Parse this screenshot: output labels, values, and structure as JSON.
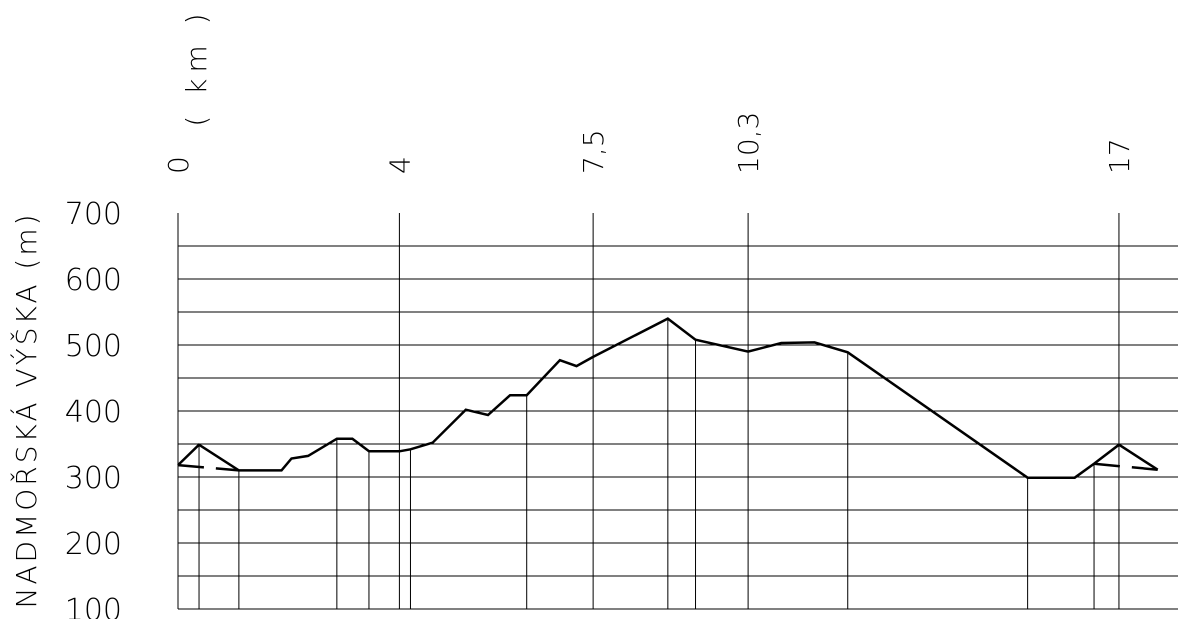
{
  "chart_data": {
    "type": "line",
    "title": "",
    "ylabel": "NADMOŘSKÁ VÝŠKA (m)",
    "xlabel": "( km )",
    "ylim": [
      100,
      700
    ],
    "yticks": [
      "100",
      "200",
      "300",
      "400",
      "500",
      "600",
      "700"
    ],
    "ytick_values": [
      100,
      200,
      300,
      400,
      500,
      600,
      700
    ],
    "xlim": [
      0,
      17.7
    ],
    "xticks": [
      {
        "label": "0",
        "value": 0
      },
      {
        "label": "4",
        "value": 4
      },
      {
        "label": "7,5",
        "value": 7.5
      },
      {
        "label": "10,3",
        "value": 10.3
      },
      {
        "label": "17",
        "value": 17
      }
    ],
    "grid": true,
    "series": [
      {
        "values": [
          {
            "x": 0.0,
            "y": 318
          },
          {
            "x": 0.38,
            "y": 349
          },
          {
            "x": 1.1,
            "y": 310
          },
          {
            "x": 1.87,
            "y": 310
          },
          {
            "x": 2.05,
            "y": 328
          },
          {
            "x": 2.35,
            "y": 332
          },
          {
            "x": 2.87,
            "y": 358
          },
          {
            "x": 3.15,
            "y": 358
          },
          {
            "x": 3.45,
            "y": 339
          },
          {
            "x": 4.0,
            "y": 339
          },
          {
            "x": 4.2,
            "y": 342
          },
          {
            "x": 4.6,
            "y": 352
          },
          {
            "x": 5.2,
            "y": 402
          },
          {
            "x": 5.6,
            "y": 394
          },
          {
            "x": 6.0,
            "y": 424
          },
          {
            "x": 6.3,
            "y": 424
          },
          {
            "x": 6.9,
            "y": 477
          },
          {
            "x": 7.2,
            "y": 468
          },
          {
            "x": 7.5,
            "y": 482
          },
          {
            "x": 8.85,
            "y": 540
          },
          {
            "x": 9.35,
            "y": 508
          },
          {
            "x": 10.3,
            "y": 490
          },
          {
            "x": 10.9,
            "y": 503
          },
          {
            "x": 11.5,
            "y": 504
          },
          {
            "x": 12.1,
            "y": 489
          },
          {
            "x": 15.35,
            "y": 299
          },
          {
            "x": 16.2,
            "y": 299
          },
          {
            "x": 16.55,
            "y": 320
          },
          {
            "x": 17.0,
            "y": 349
          },
          {
            "x": 17.7,
            "y": 311
          }
        ]
      }
    ],
    "dashed_segments": [
      [
        {
          "x": 0.0,
          "y": 318
        },
        {
          "x": 1.1,
          "y": 310
        }
      ],
      [
        {
          "x": 16.55,
          "y": 320
        },
        {
          "x": 17.7,
          "y": 311
        }
      ]
    ],
    "drop_lines_x": [
      0.38,
      1.1,
      2.87,
      3.45,
      4.2,
      6.3,
      8.85,
      9.35,
      12.1,
      15.35,
      16.55
    ],
    "minor_gridlines_y": [
      150,
      250,
      350,
      450,
      550,
      650
    ]
  }
}
